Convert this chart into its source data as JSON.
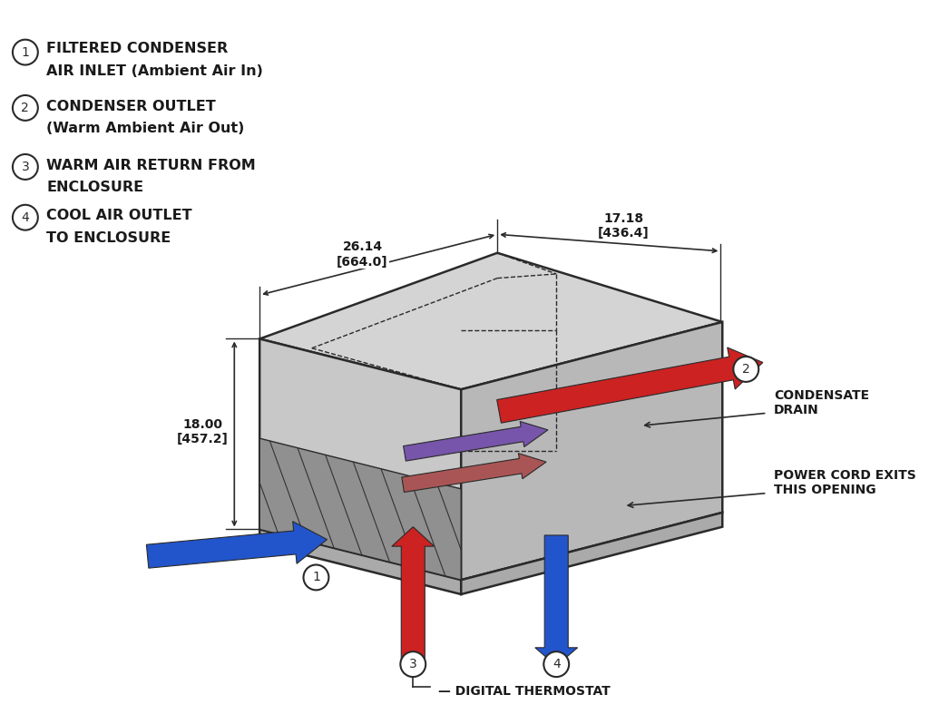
{
  "bg_color": "#ffffff",
  "label1_line1": "FILTERED CONDENSER",
  "label1_line2": "AIR INLET (Ambient Air In)",
  "label2_line1": "CONDENSER OUTLET",
  "label2_line2": "(Warm Ambient Air Out)",
  "label3_line1": "WARM AIR RETURN FROM",
  "label3_line2": "ENCLOSURE",
  "label4_line1": "COOL AIR OUTLET",
  "label4_line2": "TO ENCLOSURE",
  "dim1": "26.14\n[664.0]",
  "dim2": "17.18\n[436.4]",
  "dim3": "18.00\n[457.2]",
  "right_label1": "CONDENSATE\nDRAIN",
  "right_label2": "POWER CORD EXITS\nTHIS OPENING",
  "bottom_label": "DIGITAL THERMOSTAT",
  "line_color": "#2a2a2a",
  "red_arrow": "#cc2222",
  "blue_arrow": "#2255cc",
  "purple_arrow_1": "#7755aa",
  "purple_arrow_2": "#aa5555",
  "text_color": "#1a1a1a",
  "face_left_color": "#c8c8c8",
  "face_right_color": "#b8b8b8",
  "face_top_color": "#d4d4d4",
  "grille_color": "#888888",
  "base_strip_color": "#aaaaaa"
}
